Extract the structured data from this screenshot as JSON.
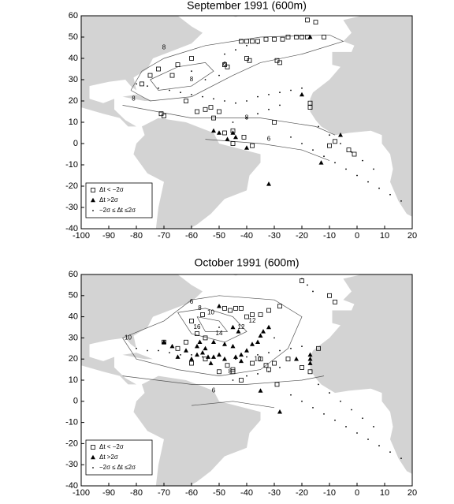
{
  "chart_data": [
    {
      "type": "scatter",
      "title": "September 1991 (600m)",
      "xlim": [
        -100,
        20
      ],
      "ylim": [
        -40,
        60
      ],
      "xticks": [
        -100,
        -90,
        -80,
        -70,
        -60,
        -50,
        -40,
        -30,
        -20,
        -10,
        0,
        10,
        20
      ],
      "yticks": [
        -40,
        -30,
        -20,
        -10,
        0,
        10,
        20,
        30,
        40,
        50,
        60
      ],
      "legend": "lower left",
      "series": [
        {
          "name": "Δt < −2σ",
          "marker": "square",
          "color": "#000000",
          "x": [
            -72,
            -78,
            -75,
            -65,
            -60,
            -48,
            -47,
            -40,
            -39,
            -42,
            -40,
            -38,
            -36,
            -33,
            -30,
            -27,
            -25,
            -22,
            -20,
            -18,
            -12,
            -15,
            -18,
            -29,
            -28,
            -55,
            -58,
            -53,
            -50,
            -45,
            -41,
            -38,
            -48,
            -52,
            -62,
            -67,
            -70,
            -71,
            -30,
            -17,
            -17,
            -8,
            -10,
            -3,
            -1,
            -45
          ],
          "y": [
            35,
            28,
            32,
            37,
            40,
            37,
            36,
            40,
            39,
            48,
            48,
            48,
            48,
            49,
            49,
            49,
            50,
            50,
            50,
            50,
            50,
            57,
            58,
            39,
            38,
            16,
            15,
            17,
            15,
            6,
            3,
            -1,
            5,
            12,
            20,
            32,
            13,
            14,
            10,
            19,
            17,
            1,
            -1,
            -3,
            -5,
            0
          ]
        },
        {
          "name": "Δt >2σ",
          "marker": "triangle",
          "color": "#000000",
          "x": [
            -52,
            -50,
            -44,
            -40,
            -20,
            -17,
            -6,
            -13,
            -32,
            -47,
            -45
          ],
          "y": [
            6,
            5,
            3,
            -2,
            23,
            50,
            4,
            -9,
            -19,
            2,
            5
          ]
        },
        {
          "name": "−2σ ≤ Δt ≤2σ",
          "marker": "dot",
          "color": "#000000",
          "x": [
            -80,
            -76,
            -72,
            -68,
            -64,
            -60,
            -56,
            -52,
            -48,
            -44,
            -40,
            -36,
            -32,
            -28,
            -24,
            -20,
            -45,
            -40,
            -36,
            -32,
            -28,
            -48,
            -44,
            -40,
            -36,
            -24,
            -20,
            -16,
            -12,
            -8,
            -4,
            0,
            4,
            8,
            12,
            16,
            -14,
            -10,
            -6,
            -2,
            2,
            6,
            -55,
            -50,
            -60
          ],
          "y": [
            28,
            27,
            26,
            25,
            24,
            23,
            22,
            21,
            20,
            19,
            20,
            22,
            23,
            24,
            25,
            26,
            10,
            12,
            14,
            16,
            18,
            42,
            44,
            46,
            47,
            3,
            0,
            -3,
            -6,
            -9,
            -12,
            -15,
            -18,
            -21,
            -24,
            -27,
            8,
            4,
            0,
            -4,
            -8,
            -12,
            30,
            32,
            34
          ]
        }
      ],
      "annotations": [
        {
          "text": "8",
          "x": -70,
          "y": 45
        },
        {
          "text": "8",
          "x": -81,
          "y": 21
        },
        {
          "text": "8",
          "x": -60,
          "y": 30
        },
        {
          "text": "6",
          "x": -48,
          "y": 37
        },
        {
          "text": "8",
          "x": -40,
          "y": 12
        },
        {
          "text": "6",
          "x": -32,
          "y": 2
        }
      ]
    },
    {
      "type": "scatter",
      "title": "October 1991 (600m)",
      "xlim": [
        -100,
        20
      ],
      "ylim": [
        -40,
        60
      ],
      "xticks": [
        -100,
        -90,
        -80,
        -70,
        -60,
        -50,
        -40,
        -30,
        -20,
        -10,
        0,
        10,
        20
      ],
      "yticks": [
        -40,
        -30,
        -20,
        -10,
        0,
        10,
        20,
        30,
        40,
        50,
        60
      ],
      "legend": "lower left",
      "series": [
        {
          "name": "Δt < −2σ",
          "marker": "square",
          "color": "#000000",
          "x": [
            -55,
            -47,
            -50,
            -45,
            -38,
            -35,
            -33,
            -30,
            -25,
            -20,
            -17,
            -29,
            -32,
            -40,
            -38,
            -35,
            -32,
            -28,
            -44,
            -42,
            -46,
            -48,
            -56,
            -60,
            -58,
            -55,
            -70,
            -65,
            -60,
            -42,
            -45,
            -14,
            -10,
            -8,
            -20,
            -62
          ],
          "y": [
            20,
            17,
            14,
            14,
            18,
            20,
            17,
            18,
            20,
            16,
            14,
            8,
            15,
            40,
            41,
            41,
            43,
            45,
            44,
            44,
            43,
            44,
            41,
            38,
            32,
            30,
            28,
            25,
            18,
            10,
            15,
            25,
            50,
            47,
            57,
            28
          ]
        },
        {
          "name": "Δt >2σ",
          "marker": "triangle",
          "color": "#000000",
          "x": [
            -58,
            -56,
            -54,
            -52,
            -50,
            -48,
            -53,
            -60,
            -62,
            -58,
            -55,
            -52,
            -48,
            -45,
            -42,
            -40,
            -38,
            -36,
            -35,
            -34,
            -32,
            -42,
            -44,
            -17,
            -17,
            -17,
            -22,
            -35,
            -45,
            -43,
            -50,
            -67,
            -70,
            -28,
            -65,
            -57
          ],
          "y": [
            22,
            23,
            21,
            21,
            22,
            20,
            18,
            20,
            24,
            26,
            25,
            28,
            27,
            26,
            22,
            24,
            27,
            28,
            31,
            33,
            35,
            19,
            21,
            20,
            18,
            22,
            20,
            5,
            35,
            33,
            45,
            26,
            28,
            -5,
            21,
            28
          ]
        },
        {
          "name": "−2σ ≤ Δt ≤2σ",
          "marker": "dot",
          "color": "#000000",
          "x": [
            -80,
            -76,
            -72,
            -68,
            -64,
            -60,
            -56,
            -52,
            -48,
            -44,
            -40,
            -36,
            -32,
            -28,
            -24,
            -20,
            -45,
            -40,
            -36,
            -32,
            -28,
            -24,
            -20,
            -16,
            -12,
            -8,
            -4,
            0,
            4,
            8,
            12,
            16,
            -14,
            -10,
            -6,
            -2,
            2,
            6,
            -20,
            -18,
            -16,
            -50,
            -30
          ],
          "y": [
            25,
            24,
            24,
            23,
            22,
            22,
            21,
            21,
            20,
            20,
            21,
            22,
            23,
            24,
            25,
            26,
            10,
            12,
            13,
            14,
            16,
            3,
            0,
            -3,
            -6,
            -9,
            -12,
            -15,
            -18,
            -21,
            -24,
            -27,
            8,
            4,
            0,
            -4,
            -8,
            -12,
            58,
            55,
            52,
            35,
            30
          ]
        }
      ],
      "annotations": [
        {
          "text": "6",
          "x": -60,
          "y": 47
        },
        {
          "text": "8",
          "x": -57,
          "y": 44
        },
        {
          "text": "10",
          "x": -53,
          "y": 42
        },
        {
          "text": "12",
          "x": -42,
          "y": 35
        },
        {
          "text": "14",
          "x": -50,
          "y": 32
        },
        {
          "text": "16",
          "x": -58,
          "y": 35
        },
        {
          "text": "10",
          "x": -83,
          "y": 30
        },
        {
          "text": "10",
          "x": -36,
          "y": 20
        },
        {
          "text": "8",
          "x": -46,
          "y": 14
        },
        {
          "text": "12",
          "x": -38,
          "y": 38
        },
        {
          "text": "6",
          "x": -52,
          "y": 5
        }
      ]
    }
  ]
}
